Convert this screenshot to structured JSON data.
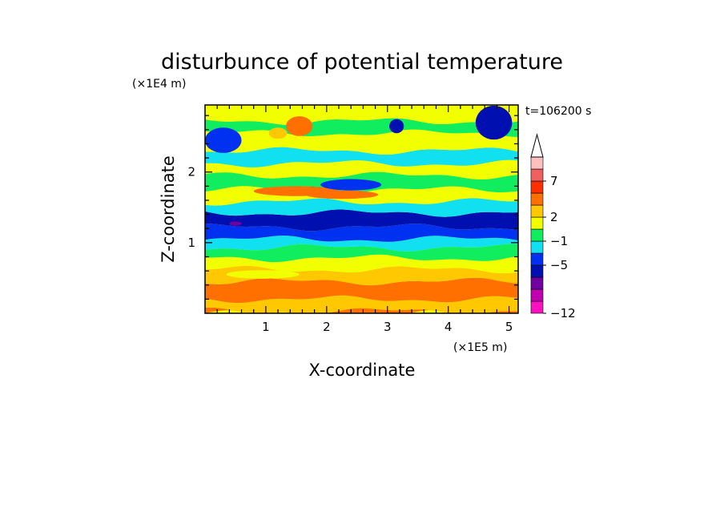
{
  "chart_data": {
    "type": "heatmap",
    "title": "disturbunce of potential temperature",
    "xlabel": "X-coordinate",
    "ylabel": "Z-coordinate",
    "x_scale_label": "(×1E5 m)",
    "y_scale_label": "(×1E4 m)",
    "time_label": "t=106200 s",
    "xlim": [
      0,
      5.15
    ],
    "ylim": [
      0,
      2.95
    ],
    "x_ticks": [
      "1",
      "2",
      "3",
      "4",
      "5"
    ],
    "y_ticks": [
      "1",
      "2"
    ],
    "colorbar": {
      "tick_labels": [
        "7",
        "2",
        "−1",
        "−5",
        "−12"
      ],
      "colors": [
        "#ff10c0",
        "#c000b0",
        "#7000a0",
        "#0010b0",
        "#0030f0",
        "#10e0f0",
        "#10ee60",
        "#f2ff00",
        "#ffc800",
        "#ff7000",
        "#ff3000",
        "#f06060",
        "#ffc0c0"
      ],
      "extend_top": true
    },
    "bands": [
      {
        "z": [
          0.0,
          0.03
        ],
        "level": 2
      },
      {
        "z": [
          0.03,
          0.2
        ],
        "level": 1
      },
      {
        "z": [
          0.2,
          0.45
        ],
        "level": 2
      },
      {
        "z": [
          0.45,
          0.62
        ],
        "level": 1
      },
      {
        "z": [
          0.62,
          0.78
        ],
        "level": 0
      },
      {
        "z": [
          0.78,
          0.93
        ],
        "level": -1
      },
      {
        "z": [
          0.93,
          1.05
        ],
        "level": -2
      },
      {
        "z": [
          1.05,
          1.22
        ],
        "level": -3
      },
      {
        "z": [
          1.22,
          1.42
        ],
        "level": -4
      },
      {
        "z": [
          1.42,
          1.58
        ],
        "level": -2
      },
      {
        "z": [
          1.58,
          1.75
        ],
        "level": 0
      },
      {
        "z": [
          1.75,
          1.95
        ],
        "level": -1
      },
      {
        "z": [
          1.95,
          2.12
        ],
        "level": 0
      },
      {
        "z": [
          2.12,
          2.3
        ],
        "level": -2
      },
      {
        "z": [
          2.3,
          2.55
        ],
        "level": 0
      },
      {
        "z": [
          2.55,
          2.72
        ],
        "level": -1
      },
      {
        "z": [
          2.72,
          2.95
        ],
        "level": 0
      }
    ],
    "features": [
      {
        "x": 1.5,
        "z": 1.73,
        "rx": 0.7,
        "rz": 0.07,
        "level": 2
      },
      {
        "x": 2.25,
        "z": 1.68,
        "rx": 0.6,
        "rz": 0.06,
        "level": 2
      },
      {
        "x": 1.55,
        "z": 2.65,
        "rx": 0.22,
        "rz": 0.14,
        "level": 2
      },
      {
        "x": 1.2,
        "z": 2.55,
        "rx": 0.15,
        "rz": 0.08,
        "level": 1
      },
      {
        "x": 0.5,
        "z": 1.27,
        "rx": 0.1,
        "rz": 0.03,
        "level": -5
      },
      {
        "x": 4.75,
        "z": 2.7,
        "rx": 0.18,
        "rz": 0.16,
        "level": -5
      },
      {
        "x": 4.75,
        "z": 2.7,
        "rx": 0.3,
        "rz": 0.24,
        "level": -4
      },
      {
        "x": 3.15,
        "z": 2.65,
        "rx": 0.12,
        "rz": 0.1,
        "level": -4
      },
      {
        "x": 0.12,
        "z": 2.42,
        "rx": 0.1,
        "rz": 0.1,
        "level": -5
      },
      {
        "x": 0.3,
        "z": 2.45,
        "rx": 0.3,
        "rz": 0.18,
        "level": -3
      },
      {
        "x": 2.4,
        "z": 1.82,
        "rx": 0.5,
        "rz": 0.08,
        "level": -3
      },
      {
        "x": 0.95,
        "z": 0.55,
        "rx": 0.6,
        "rz": 0.06,
        "level": 0
      }
    ]
  }
}
